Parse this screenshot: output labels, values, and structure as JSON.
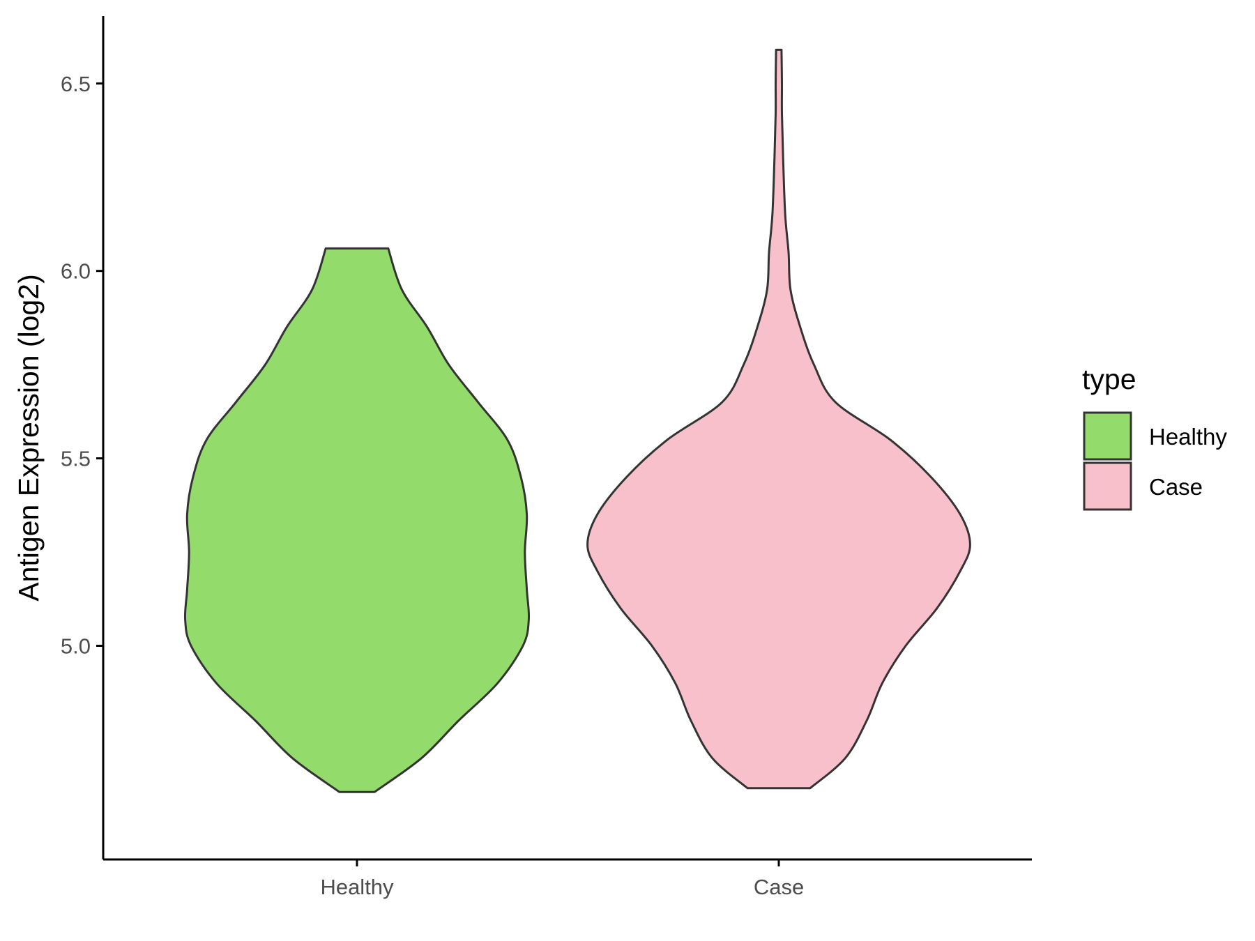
{
  "chart_data": {
    "type": "violin",
    "xlabel": "",
    "ylabel": "Antigen Expression (log2)",
    "ylim": [
      4.43,
      6.68
    ],
    "yticks": [
      "5.0",
      "5.5",
      "6.0",
      "6.5"
    ],
    "categories": [
      "Healthy",
      "Case"
    ],
    "grid": false,
    "legend": {
      "title": "type",
      "position": "right",
      "entries": [
        "Healthy",
        "Case"
      ]
    },
    "series": [
      {
        "name": "Healthy",
        "color": "#93dc6b",
        "min": 4.61,
        "max": 6.06,
        "profile": [
          [
            4.61,
            0.09
          ],
          [
            4.7,
            0.33
          ],
          [
            4.8,
            0.52
          ],
          [
            4.9,
            0.72
          ],
          [
            5.0,
            0.85
          ],
          [
            5.07,
            0.88
          ],
          [
            5.15,
            0.87
          ],
          [
            5.25,
            0.86
          ],
          [
            5.35,
            0.87
          ],
          [
            5.45,
            0.84
          ],
          [
            5.55,
            0.77
          ],
          [
            5.65,
            0.62
          ],
          [
            5.75,
            0.47
          ],
          [
            5.85,
            0.36
          ],
          [
            5.95,
            0.23
          ],
          [
            6.06,
            0.16
          ]
        ]
      },
      {
        "name": "Case",
        "color": "#f7c0cb",
        "min": 4.62,
        "max": 6.59,
        "profile": [
          [
            4.62,
            0.16
          ],
          [
            4.7,
            0.34
          ],
          [
            4.8,
            0.45
          ],
          [
            4.9,
            0.53
          ],
          [
            5.0,
            0.65
          ],
          [
            5.1,
            0.81
          ],
          [
            5.2,
            0.93
          ],
          [
            5.27,
            0.98
          ],
          [
            5.35,
            0.93
          ],
          [
            5.45,
            0.78
          ],
          [
            5.55,
            0.57
          ],
          [
            5.65,
            0.29
          ],
          [
            5.75,
            0.18
          ],
          [
            5.85,
            0.11
          ],
          [
            5.95,
            0.06
          ],
          [
            6.05,
            0.05
          ],
          [
            6.15,
            0.033
          ],
          [
            6.3,
            0.022
          ],
          [
            6.42,
            0.016
          ],
          [
            6.5,
            0.016
          ],
          [
            6.59,
            0.014
          ]
        ]
      }
    ]
  }
}
